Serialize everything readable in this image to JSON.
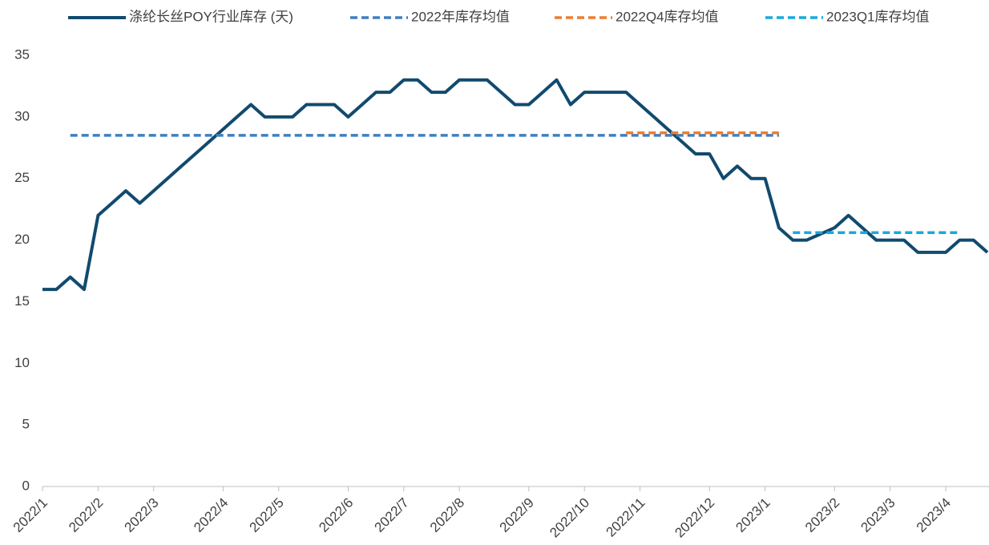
{
  "chart_data": {
    "type": "line",
    "categories": [
      "2022/1",
      null,
      null,
      null,
      "2022/2",
      null,
      null,
      null,
      "2022/3",
      null,
      null,
      null,
      null,
      "2022/4",
      null,
      null,
      null,
      "2022/5",
      null,
      null,
      null,
      null,
      "2022/6",
      null,
      null,
      null,
      "2022/7",
      null,
      null,
      null,
      "2022/8",
      null,
      null,
      null,
      null,
      "2022/9",
      null,
      null,
      null,
      "2022/10",
      null,
      null,
      null,
      "2022/11",
      null,
      null,
      null,
      null,
      "2022/12",
      null,
      null,
      null,
      "2023/1",
      null,
      null,
      null,
      null,
      "2023/2",
      null,
      null,
      null,
      "2023/3",
      null,
      null,
      null,
      "2023/4",
      null,
      null,
      null
    ],
    "series": [
      {
        "name": "涤纶长丝POY行业库存 (天)",
        "color": "#114a6e",
        "dashed": false,
        "values": [
          16,
          16,
          17,
          16,
          22,
          23,
          24,
          23,
          24,
          25,
          26,
          27,
          28,
          29,
          30,
          31,
          30,
          30,
          30,
          31,
          31,
          31,
          30,
          31,
          32,
          32,
          33,
          33,
          32,
          32,
          33,
          33,
          33,
          32,
          31,
          31,
          32,
          33,
          31,
          32,
          32,
          32,
          32,
          31,
          30,
          29,
          28,
          27,
          27,
          25,
          26,
          25,
          25,
          21,
          20,
          20,
          20.5,
          21,
          22,
          21,
          20,
          20,
          20,
          19,
          19,
          19,
          20,
          20,
          19
        ]
      },
      {
        "name": "2022年库存均值",
        "color": "#3f7fbf",
        "dashed": true,
        "values": [
          null,
          null,
          28.5,
          28.5,
          28.5,
          28.5,
          28.5,
          28.5,
          28.5,
          28.5,
          28.5,
          28.5,
          28.5,
          28.5,
          28.5,
          28.5,
          28.5,
          28.5,
          28.5,
          28.5,
          28.5,
          28.5,
          28.5,
          28.5,
          28.5,
          28.5,
          28.5,
          28.5,
          28.5,
          28.5,
          28.5,
          28.5,
          28.5,
          28.5,
          28.5,
          28.5,
          28.5,
          28.5,
          28.5,
          28.5,
          28.5,
          28.5,
          28.5,
          28.5,
          28.5,
          28.5,
          28.5,
          28.5,
          28.5,
          28.5,
          28.5,
          28.5,
          28.5,
          28.5,
          null,
          null,
          null,
          null,
          null,
          null,
          null,
          null,
          null,
          null,
          null,
          null,
          null,
          null,
          null
        ]
      },
      {
        "name": "2022Q4库存均值",
        "color": "#ed7d31",
        "dashed": true,
        "values": [
          null,
          null,
          null,
          null,
          null,
          null,
          null,
          null,
          null,
          null,
          null,
          null,
          null,
          null,
          null,
          null,
          null,
          null,
          null,
          null,
          null,
          null,
          null,
          null,
          null,
          null,
          null,
          null,
          null,
          null,
          null,
          null,
          null,
          null,
          null,
          null,
          null,
          null,
          null,
          null,
          null,
          null,
          28.7,
          28.7,
          28.7,
          28.7,
          28.7,
          28.7,
          28.7,
          28.7,
          28.7,
          28.7,
          28.7,
          28.7,
          null,
          null,
          null,
          null,
          null,
          null,
          null,
          null,
          null,
          null,
          null,
          null,
          null,
          null,
          null
        ]
      },
      {
        "name": "2023Q1库存均值",
        "color": "#17a9e1",
        "dashed": true,
        "values": [
          null,
          null,
          null,
          null,
          null,
          null,
          null,
          null,
          null,
          null,
          null,
          null,
          null,
          null,
          null,
          null,
          null,
          null,
          null,
          null,
          null,
          null,
          null,
          null,
          null,
          null,
          null,
          null,
          null,
          null,
          null,
          null,
          null,
          null,
          null,
          null,
          null,
          null,
          null,
          null,
          null,
          null,
          null,
          null,
          null,
          null,
          null,
          null,
          null,
          null,
          null,
          null,
          null,
          null,
          20.6,
          20.6,
          20.6,
          20.6,
          20.6,
          20.6,
          20.6,
          20.6,
          20.6,
          20.6,
          20.6,
          20.6,
          20.6,
          null,
          null
        ]
      }
    ],
    "ylim": [
      0,
      35
    ],
    "yticks": [
      0,
      5,
      10,
      15,
      20,
      25,
      30,
      35
    ],
    "grid": false,
    "legend": "top"
  }
}
